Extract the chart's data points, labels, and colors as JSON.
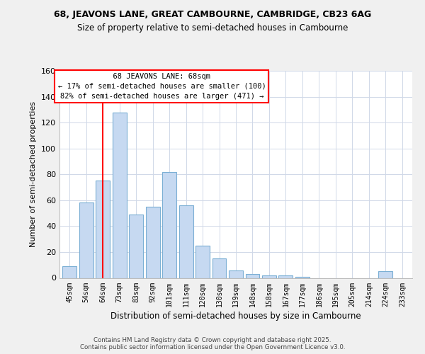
{
  "title1": "68, JEAVONS LANE, GREAT CAMBOURNE, CAMBRIDGE, CB23 6AG",
  "title2": "Size of property relative to semi-detached houses in Cambourne",
  "xlabel": "Distribution of semi-detached houses by size in Cambourne",
  "ylabel": "Number of semi-detached properties",
  "categories": [
    "45sqm",
    "54sqm",
    "64sqm",
    "73sqm",
    "83sqm",
    "92sqm",
    "101sqm",
    "111sqm",
    "120sqm",
    "130sqm",
    "139sqm",
    "148sqm",
    "158sqm",
    "167sqm",
    "177sqm",
    "186sqm",
    "195sqm",
    "205sqm",
    "214sqm",
    "224sqm",
    "233sqm"
  ],
  "values": [
    9,
    58,
    75,
    128,
    49,
    55,
    82,
    56,
    25,
    15,
    6,
    3,
    2,
    2,
    1,
    0,
    0,
    0,
    0,
    5,
    0
  ],
  "bar_color": "#c6d9f1",
  "bar_edge_color": "#7bafd4",
  "vline_x_index": 2,
  "vline_color": "#ff0000",
  "annotation_title": "68 JEAVONS LANE: 68sqm",
  "annotation_line1": "← 17% of semi-detached houses are smaller (100)",
  "annotation_line2": "82% of semi-detached houses are larger (471) →",
  "annotation_box_color": "#ffffff",
  "annotation_box_edge": "#ff0000",
  "ylim": [
    0,
    160
  ],
  "yticks": [
    0,
    20,
    40,
    60,
    80,
    100,
    120,
    140,
    160
  ],
  "footer1": "Contains HM Land Registry data © Crown copyright and database right 2025.",
  "footer2": "Contains public sector information licensed under the Open Government Licence v3.0.",
  "bg_color": "#f0f0f0",
  "plot_bg_color": "#ffffff",
  "grid_color": "#d0d8e8"
}
